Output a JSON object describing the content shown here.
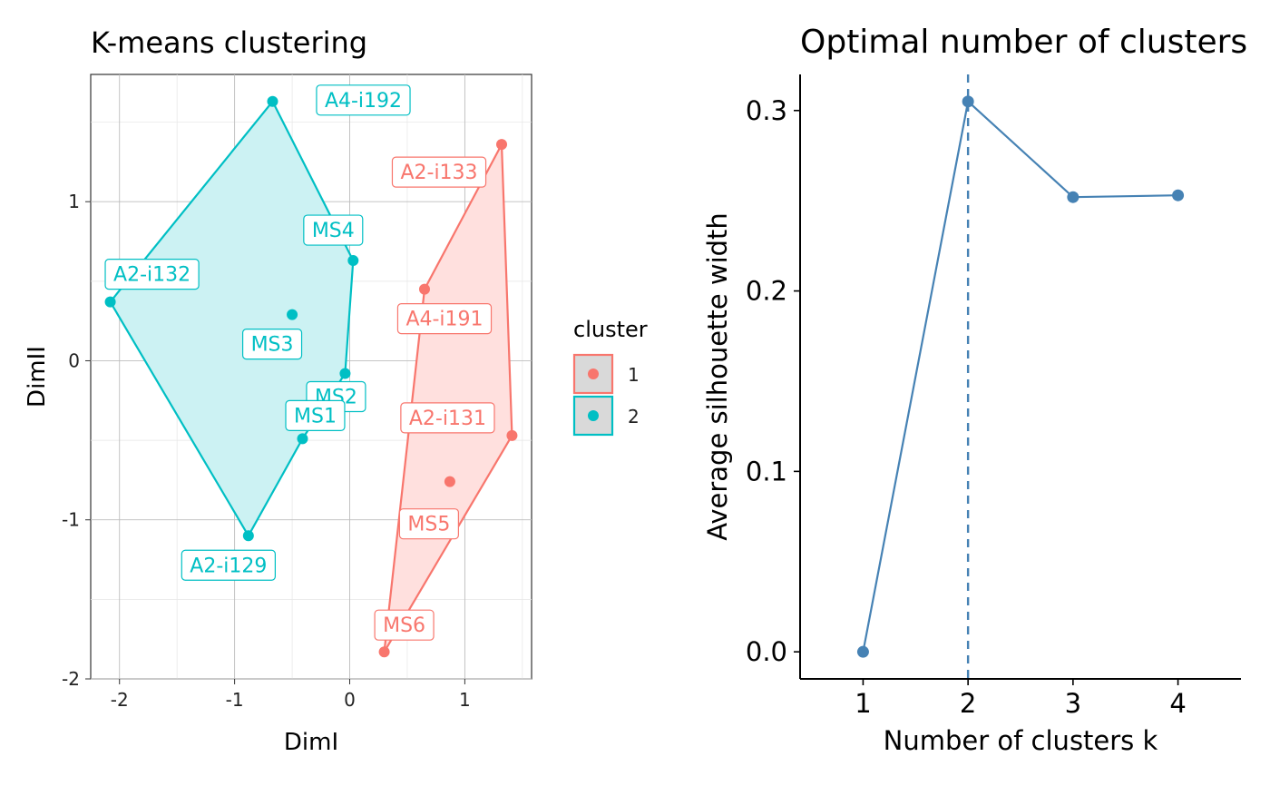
{
  "chart_data": [
    {
      "type": "scatter",
      "title": "K-means clustering",
      "xlabel": "DimI",
      "ylabel": "DimII",
      "xlim": [
        -2.25,
        1.58
      ],
      "ylim": [
        -2.0,
        1.8
      ],
      "x_ticks": [
        -2,
        -1,
        0,
        1
      ],
      "y_ticks": [
        -2,
        -1,
        0,
        1
      ],
      "x_tick_labels": [
        "-2",
        "-1",
        "0",
        "1"
      ],
      "y_tick_labels": [
        "-2",
        "-1",
        "0",
        "1"
      ],
      "grid": true,
      "legend": {
        "title": "cluster",
        "placement": "right",
        "entries": [
          {
            "label": "1",
            "color": "#F8766D",
            "fill": "#FFE0DE"
          },
          {
            "label": "2",
            "color": "#00BFC4",
            "fill": "#CCF2F3"
          }
        ]
      },
      "series": [
        {
          "name": "1",
          "color": "#F8766D",
          "points": [
            {
              "label": "A2-i133",
              "x": 1.32,
              "y": 1.36
            },
            {
              "label": "A4-i191",
              "x": 0.65,
              "y": 0.45
            },
            {
              "label": "A2-i131",
              "x": 1.41,
              "y": -0.47
            },
            {
              "label": "MS5",
              "x": 0.87,
              "y": -0.76
            },
            {
              "label": "MS6",
              "x": 0.3,
              "y": -1.83
            }
          ],
          "hull": [
            "A2-i133",
            "A2-i131",
            "MS6",
            "A4-i191"
          ]
        },
        {
          "name": "2",
          "color": "#00BFC4",
          "points": [
            {
              "label": "A4-i192",
              "x": -0.67,
              "y": 1.63
            },
            {
              "label": "MS4",
              "x": 0.03,
              "y": 0.63
            },
            {
              "label": "A2-i132",
              "x": -2.08,
              "y": 0.37
            },
            {
              "label": "MS3",
              "x": -0.5,
              "y": 0.29
            },
            {
              "label": "MS2",
              "x": -0.04,
              "y": -0.08
            },
            {
              "label": "MS1",
              "x": -0.41,
              "y": -0.49
            },
            {
              "label": "A2-i129",
              "x": -0.88,
              "y": -1.1
            }
          ],
          "hull": [
            "A4-i192",
            "MS4",
            "MS2",
            "MS1",
            "A2-i129",
            "A2-i132"
          ]
        }
      ]
    },
    {
      "type": "line",
      "title": "Optimal number of clusters",
      "xlabel": "Number of clusters k",
      "ylabel": "Average silhouette width",
      "categories": [
        "1",
        "2",
        "3",
        "4"
      ],
      "values": [
        0.0,
        0.305,
        0.252,
        0.253
      ],
      "ylim": [
        -0.015,
        0.32
      ],
      "y_ticks": [
        0.0,
        0.1,
        0.2,
        0.3
      ],
      "y_tick_labels": [
        "0.0",
        "0.1",
        "0.2",
        "0.3"
      ],
      "optimal_k": 2,
      "color": "#4682B4",
      "grid": false
    }
  ]
}
